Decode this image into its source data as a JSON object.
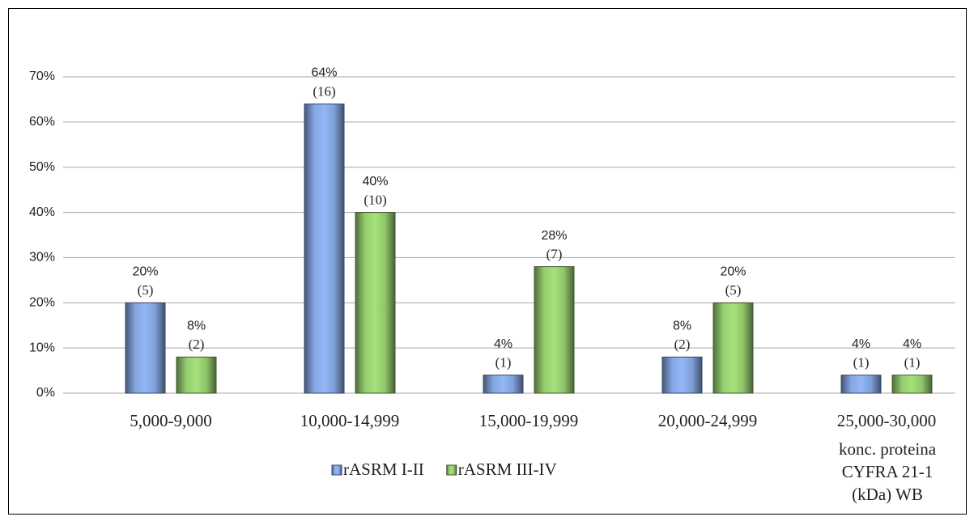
{
  "chart_data": {
    "type": "bar",
    "categories": [
      "5,000-9,000",
      "10,000-14,999",
      "15,000-19,999",
      "20,000-24,999",
      "25,000-30,000"
    ],
    "x_label": "konc. proteina CYFRA 21-1 (kDa) WB",
    "series": [
      {
        "name": "rASRM I-II",
        "color": "#7f9fd8",
        "values": [
          20,
          64,
          4,
          8,
          4
        ],
        "value_labels": [
          "20%",
          "64%",
          "4%",
          "8%",
          "4%"
        ],
        "count_labels": [
          "(5)",
          "(16)",
          "(1)",
          "(2)",
          "(1)"
        ]
      },
      {
        "name": "rASRM III-IV",
        "color": "#8fc46a",
        "values": [
          8,
          40,
          28,
          20,
          4
        ],
        "value_labels": [
          "8%",
          "40%",
          "28%",
          "20%",
          "4%"
        ],
        "count_labels": [
          "(2)",
          "(10)",
          "(7)",
          "(5)",
          "(1)"
        ]
      }
    ],
    "ylim": [
      0,
      70
    ],
    "yticks": [
      {
        "value": 0,
        "label": "0%"
      },
      {
        "value": 10,
        "label": "10%"
      },
      {
        "value": 20,
        "label": "20%"
      },
      {
        "value": 30,
        "label": "30%"
      },
      {
        "value": 40,
        "label": "40%"
      },
      {
        "value": 50,
        "label": "50%"
      },
      {
        "value": 60,
        "label": "60%"
      },
      {
        "value": 70,
        "label": "70%"
      }
    ],
    "grid": true,
    "legend": "bottom"
  }
}
